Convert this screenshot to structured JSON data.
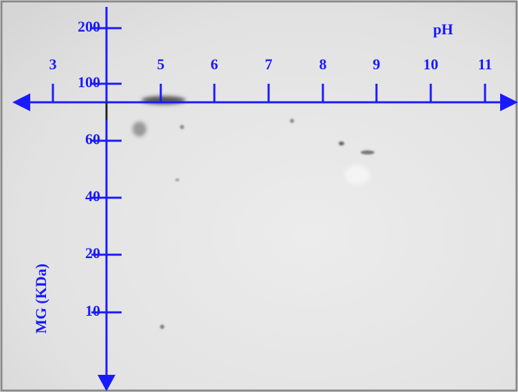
{
  "x_axis": {
    "title": "pH",
    "ticks": [
      "3",
      "5",
      "6",
      "7",
      "8",
      "9",
      "10",
      "11"
    ]
  },
  "y_axis": {
    "title": "MG (KDa)",
    "ticks": [
      "200",
      "100",
      "60",
      "40",
      "20",
      "10"
    ]
  }
}
